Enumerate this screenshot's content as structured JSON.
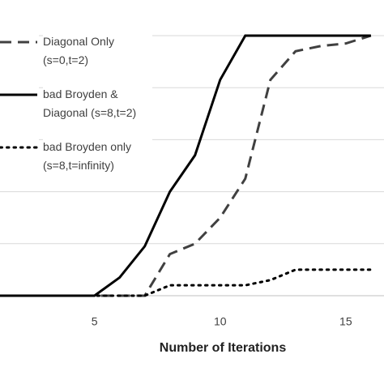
{
  "chart_data": {
    "type": "line",
    "x_label": "Number of Iterations",
    "x": [
      1,
      2,
      3,
      4,
      5,
      6,
      7,
      8,
      9,
      10,
      11,
      12,
      13,
      14,
      15,
      16
    ],
    "series": [
      {
        "name": "Diagonal Only (s=0,t=2)",
        "color": "#404040",
        "dash": "dashed",
        "values": [
          0,
          0,
          0,
          0,
          0,
          0,
          0,
          0.16,
          0.2,
          0.3,
          0.45,
          0.83,
          0.94,
          0.96,
          0.97,
          1
        ]
      },
      {
        "name": "bad Broyden & Diagonal (s=8,t=2)",
        "color": "#000000",
        "dash": "solid",
        "values": [
          0,
          0,
          0,
          0,
          0,
          0.07,
          0.19,
          0.4,
          0.54,
          0.83,
          1,
          1,
          1,
          1,
          1,
          1
        ]
      },
      {
        "name": "bad Broyden only (s=8,t=infinity)",
        "color": "#000000",
        "dash": "dotted",
        "values": [
          0,
          0,
          0,
          0,
          0,
          0,
          0,
          0.04,
          0.04,
          0.04,
          0.04,
          0.06,
          0.1,
          0.1,
          0.1,
          0.1
        ]
      }
    ],
    "xlim": [
      1.24,
      16.52
    ],
    "xticks": [
      5,
      10,
      15
    ],
    "ylim": [
      0,
      1
    ],
    "yticks": [
      0,
      0.2,
      0.4,
      0.6,
      0.8,
      1
    ],
    "grid": true
  }
}
